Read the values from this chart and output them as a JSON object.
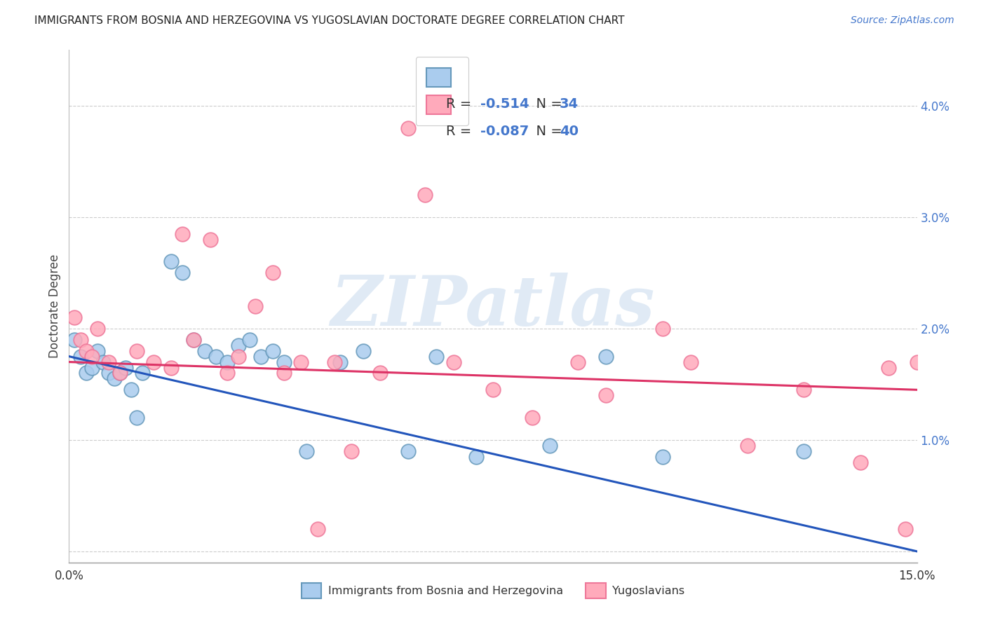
{
  "title": "IMMIGRANTS FROM BOSNIA AND HERZEGOVINA VS YUGOSLAVIAN DOCTORATE DEGREE CORRELATION CHART",
  "source": "Source: ZipAtlas.com",
  "ylabel": "Doctorate Degree",
  "xlim": [
    0,
    0.15
  ],
  "ylim": [
    -0.001,
    0.045
  ],
  "yticks_grid": [
    0.0,
    0.01,
    0.02,
    0.03,
    0.04
  ],
  "yticks_right": [
    0.01,
    0.02,
    0.03,
    0.04
  ],
  "ytick_labels_right": [
    "1.0%",
    "2.0%",
    "3.0%",
    "4.0%"
  ],
  "xticks": [
    0.0,
    0.025,
    0.05,
    0.075,
    0.1,
    0.125,
    0.15
  ],
  "xlabel_shown": [
    "0.0%",
    "",
    "",
    "",
    "",
    "",
    "15.0%"
  ],
  "blue_color": "#aaccee",
  "pink_color": "#ffaabb",
  "blue_edge": "#6699bb",
  "pink_edge": "#ee7799",
  "trend_blue": "#2255bb",
  "trend_pink": "#dd3366",
  "blue_R": "-0.514",
  "blue_N": "34",
  "pink_R": "-0.087",
  "pink_N": "40",
  "legend_label_blue": "Immigrants from Bosnia and Herzegovina",
  "legend_label_pink": "Yugoslavians",
  "legend_text_color": "#333333",
  "legend_number_color": "#4477cc",
  "watermark_text": "ZIPatlas",
  "watermark_color": "#ccddef",
  "background_color": "#ffffff",
  "grid_color": "#cccccc",
  "blue_x": [
    0.001,
    0.002,
    0.003,
    0.004,
    0.005,
    0.006,
    0.007,
    0.008,
    0.009,
    0.01,
    0.011,
    0.012,
    0.013,
    0.018,
    0.02,
    0.022,
    0.024,
    0.026,
    0.028,
    0.03,
    0.032,
    0.034,
    0.036,
    0.038,
    0.042,
    0.048,
    0.052,
    0.06,
    0.065,
    0.072,
    0.085,
    0.095,
    0.105,
    0.13
  ],
  "blue_y": [
    0.019,
    0.0175,
    0.016,
    0.0165,
    0.018,
    0.017,
    0.016,
    0.0155,
    0.016,
    0.0165,
    0.0145,
    0.012,
    0.016,
    0.026,
    0.025,
    0.019,
    0.018,
    0.0175,
    0.017,
    0.0185,
    0.019,
    0.0175,
    0.018,
    0.017,
    0.009,
    0.017,
    0.018,
    0.009,
    0.0175,
    0.0085,
    0.0095,
    0.0175,
    0.0085,
    0.009
  ],
  "pink_x": [
    0.001,
    0.002,
    0.003,
    0.004,
    0.005,
    0.007,
    0.009,
    0.012,
    0.015,
    0.018,
    0.02,
    0.022,
    0.025,
    0.028,
    0.03,
    0.033,
    0.036,
    0.038,
    0.041,
    0.044,
    0.047,
    0.05,
    0.055,
    0.06,
    0.063,
    0.068,
    0.075,
    0.082,
    0.09,
    0.095,
    0.105,
    0.11,
    0.12,
    0.13,
    0.14,
    0.145,
    0.148,
    0.15,
    0.152,
    0.155
  ],
  "pink_y": [
    0.021,
    0.019,
    0.018,
    0.0175,
    0.02,
    0.017,
    0.016,
    0.018,
    0.017,
    0.0165,
    0.0285,
    0.019,
    0.028,
    0.016,
    0.0175,
    0.022,
    0.025,
    0.016,
    0.017,
    0.002,
    0.017,
    0.009,
    0.016,
    0.038,
    0.032,
    0.017,
    0.0145,
    0.012,
    0.017,
    0.014,
    0.02,
    0.017,
    0.0095,
    0.0145,
    0.008,
    0.0165,
    0.002,
    0.017,
    0.016,
    0.015
  ],
  "blue_trend_x0": 0.0,
  "blue_trend_x1": 0.15,
  "blue_trend_y0": 0.0175,
  "blue_trend_y1": 0.0,
  "pink_trend_x0": 0.0,
  "pink_trend_x1": 0.15,
  "pink_trend_y0": 0.017,
  "pink_trend_y1": 0.0145
}
